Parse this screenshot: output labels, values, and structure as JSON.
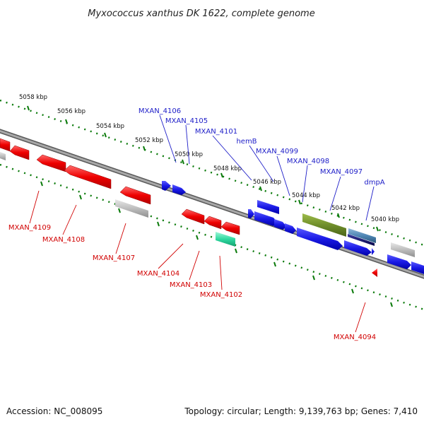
{
  "title": "Myxococcus xanthus DK 1622, complete genome",
  "footer": {
    "accession": "Accession: NC_008095",
    "summary": "Topology: circular; Length: 9,139,763 bp; Genes: 7,410"
  },
  "scale_labels": [
    "5058 kbp",
    "5056 kbp",
    "5054 kbp",
    "5052 kbp",
    "5050 kbp",
    "5048 kbp",
    "5046 kbp",
    "5044 kbp",
    "5042 kbp",
    "5040 kbp"
  ],
  "genes_top": [
    {
      "name": "MXAN_4106",
      "color": "#1d1dc8"
    },
    {
      "name": "MXAN_4105",
      "color": "#1d1dc8"
    },
    {
      "name": "MXAN_4101",
      "color": "#1d1dc8"
    },
    {
      "name": "hemB",
      "color": "#1d1dc8"
    },
    {
      "name": "MXAN_4099",
      "color": "#1d1dc8"
    },
    {
      "name": "MXAN_4098",
      "color": "#1d1dc8"
    },
    {
      "name": "MXAN_4097",
      "color": "#1d1dc8"
    },
    {
      "name": "dmpA",
      "color": "#1d1dc8"
    }
  ],
  "genes_bottom": [
    {
      "name": "MXAN_4109",
      "color": "#d10000"
    },
    {
      "name": "MXAN_4108",
      "color": "#d10000"
    },
    {
      "name": "MXAN_4107",
      "color": "#d10000"
    },
    {
      "name": "MXAN_4104",
      "color": "#d10000"
    },
    {
      "name": "MXAN_4103",
      "color": "#d10000"
    },
    {
      "name": "MXAN_4102",
      "color": "#d10000"
    },
    {
      "name": "MXAN_4094",
      "color": "#d10000"
    }
  ],
  "colors": {
    "forward_gene": "#1d1dc8",
    "reverse_gene": "#e00000",
    "rna_gene": "#2fd9a0",
    "pseudo_gene": "#b8b8b8",
    "highlight_gene": "#6f8e2a",
    "backbone": "#888888",
    "tick": "#0a7a0a"
  }
}
